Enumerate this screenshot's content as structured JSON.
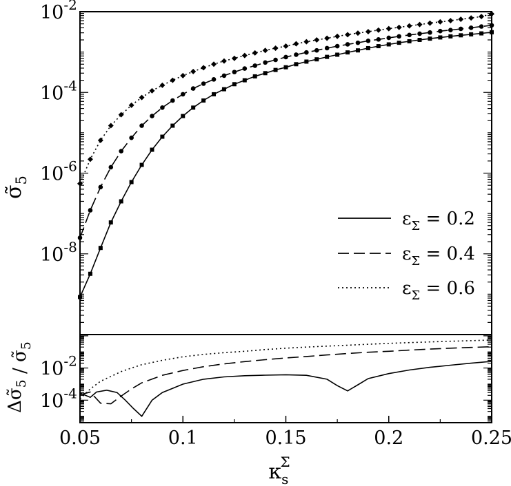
{
  "chart_data": [
    {
      "type": "line",
      "panel": "top",
      "ylabel": "σ̃5",
      "yscale": "log",
      "ylim": [
        1e-10,
        0.01
      ],
      "xlim": [
        0.05,
        0.25
      ],
      "ytick_labels": [
        {
          "value": 0.01,
          "mantissa": "10",
          "exp": "-2"
        },
        {
          "value": 0.0001,
          "mantissa": "10",
          "exp": "-4"
        },
        {
          "value": 1e-06,
          "mantissa": "10",
          "exp": "-6"
        },
        {
          "value": 1e-08,
          "mantissa": "10",
          "exp": "-8"
        }
      ],
      "legend_position": "center-right",
      "series": [
        {
          "name": "εΣ = 0.2",
          "style": "solid",
          "marker": "square",
          "x": [
            0.05,
            0.055,
            0.06,
            0.065,
            0.07,
            0.075,
            0.08,
            0.085,
            0.09,
            0.095,
            0.1,
            0.105,
            0.11,
            0.115,
            0.12,
            0.125,
            0.13,
            0.135,
            0.14,
            0.145,
            0.15,
            0.155,
            0.16,
            0.165,
            0.17,
            0.175,
            0.18,
            0.185,
            0.19,
            0.195,
            0.2,
            0.205,
            0.21,
            0.215,
            0.22,
            0.225,
            0.23,
            0.235,
            0.24,
            0.245,
            0.25
          ],
          "values": [
            8.5e-10,
            3.2e-09,
            1.4e-08,
            6e-08,
            2e-07,
            6e-07,
            1.6e-06,
            3.8e-06,
            8e-06,
            1.5e-05,
            2.6e-05,
            4.2e-05,
            6.3e-05,
            9e-05,
            0.00012,
            0.00016,
            0.0002,
            0.00025,
            0.0003,
            0.00036,
            0.00042,
            0.0005,
            0.00058,
            0.00066,
            0.00076,
            0.00086,
            0.00098,
            0.0011,
            0.00125,
            0.0014,
            0.00155,
            0.0017,
            0.00185,
            0.002,
            0.00215,
            0.0023,
            0.00245,
            0.0026,
            0.00275,
            0.0029,
            0.0031
          ]
        },
        {
          "name": "εΣ = 0.4",
          "style": "dashed",
          "marker": "circle",
          "x": [
            0.05,
            0.055,
            0.06,
            0.065,
            0.07,
            0.075,
            0.08,
            0.085,
            0.09,
            0.095,
            0.1,
            0.105,
            0.11,
            0.115,
            0.12,
            0.125,
            0.13,
            0.135,
            0.14,
            0.145,
            0.15,
            0.155,
            0.16,
            0.165,
            0.17,
            0.175,
            0.18,
            0.185,
            0.19,
            0.195,
            0.2,
            0.205,
            0.21,
            0.215,
            0.22,
            0.225,
            0.23,
            0.235,
            0.24,
            0.245,
            0.25
          ],
          "values": [
            2.5e-08,
            1.2e-07,
            4.5e-07,
            1.4e-06,
            3.5e-06,
            7.5e-06,
            1.5e-05,
            2.6e-05,
            4.2e-05,
            6.3e-05,
            9e-05,
            0.000125,
            0.000165,
            0.00021,
            0.00026,
            0.00032,
            0.00039,
            0.00046,
            0.00055,
            0.00064,
            0.00075,
            0.00086,
            0.00098,
            0.0011,
            0.00125,
            0.0014,
            0.00155,
            0.0017,
            0.0019,
            0.00205,
            0.00225,
            0.00245,
            0.00265,
            0.00285,
            0.00305,
            0.0033,
            0.0035,
            0.00375,
            0.004,
            0.0043,
            0.0046
          ]
        },
        {
          "name": "εΣ = 0.6",
          "style": "dotted",
          "marker": "diamond",
          "x": [
            0.05,
            0.055,
            0.06,
            0.065,
            0.07,
            0.075,
            0.08,
            0.085,
            0.09,
            0.095,
            0.1,
            0.105,
            0.11,
            0.115,
            0.12,
            0.125,
            0.13,
            0.135,
            0.14,
            0.145,
            0.15,
            0.155,
            0.16,
            0.165,
            0.17,
            0.175,
            0.18,
            0.185,
            0.19,
            0.195,
            0.2,
            0.205,
            0.21,
            0.215,
            0.22,
            0.225,
            0.23,
            0.235,
            0.24,
            0.245,
            0.25
          ],
          "values": [
            5.5e-07,
            2.2e-06,
            6.5e-06,
            1.5e-05,
            2.8e-05,
            4.8e-05,
            7.5e-05,
            0.00011,
            0.00015,
            0.0002,
            0.00026,
            0.00033,
            0.00041,
            0.0005,
            0.0006,
            0.0007,
            0.00082,
            0.00095,
            0.0011,
            0.00125,
            0.0014,
            0.0016,
            0.0018,
            0.002,
            0.0022,
            0.00245,
            0.0027,
            0.00295,
            0.0032,
            0.0035,
            0.0038,
            0.0041,
            0.00445,
            0.0048,
            0.0052,
            0.0056,
            0.006,
            0.0065,
            0.007,
            0.0076,
            0.0088
          ]
        }
      ]
    },
    {
      "type": "line",
      "panel": "bottom",
      "ylabel": "Δσ̃5 / σ̃5",
      "xlabel": "κsΣ",
      "yscale": "log",
      "ylim": [
        4e-06,
        1.2
      ],
      "xlim": [
        0.05,
        0.25
      ],
      "xticks": [
        0.05,
        0.1,
        0.15,
        0.2,
        0.25
      ],
      "xtick_labels": [
        "0.05",
        "0.1",
        "0.15",
        "0.2",
        "0.25"
      ],
      "ytick_labels": [
        {
          "value": 0.01,
          "mantissa": "10",
          "exp": "-2"
        },
        {
          "value": 0.0001,
          "mantissa": "10",
          "exp": "-4"
        }
      ],
      "series": [
        {
          "name": "εΣ = 0.2",
          "style": "solid",
          "x": [
            0.05,
            0.055,
            0.058,
            0.063,
            0.068,
            0.072,
            0.076,
            0.08,
            0.085,
            0.09,
            0.1,
            0.11,
            0.12,
            0.13,
            0.14,
            0.15,
            0.16,
            0.17,
            0.175,
            0.18,
            0.185,
            0.19,
            0.2,
            0.21,
            0.22,
            0.23,
            0.24,
            0.25
          ],
          "values": [
            0.00028,
            0.00015,
            0.00032,
            0.00042,
            0.0003,
            0.0001,
            3e-05,
            1e-05,
            0.0001,
            0.0003,
            0.001,
            0.002,
            0.0028,
            0.0033,
            0.0036,
            0.0038,
            0.0035,
            0.002,
            0.0008,
            0.00038,
            0.0009,
            0.0022,
            0.0045,
            0.0075,
            0.011,
            0.015,
            0.02,
            0.026
          ]
        },
        {
          "name": "εΣ = 0.4",
          "style": "dashed",
          "x": [
            0.05,
            0.055,
            0.06,
            0.065,
            0.07,
            0.075,
            0.08,
            0.09,
            0.1,
            0.11,
            0.12,
            0.13,
            0.14,
            0.15,
            0.16,
            0.17,
            0.18,
            0.19,
            0.2,
            0.21,
            0.22,
            0.23,
            0.24,
            0.25
          ],
          "values": [
            0.00022,
            0.00032,
            6.5e-05,
            6e-05,
            0.00018,
            0.0005,
            0.0012,
            0.0035,
            0.007,
            0.012,
            0.018,
            0.025,
            0.033,
            0.042,
            0.052,
            0.065,
            0.08,
            0.095,
            0.11,
            0.13,
            0.15,
            0.17,
            0.19,
            0.21
          ]
        },
        {
          "name": "εΣ = 0.6",
          "style": "dotted",
          "x": [
            0.05,
            0.055,
            0.06,
            0.065,
            0.07,
            0.075,
            0.08,
            0.09,
            0.1,
            0.11,
            0.12,
            0.13,
            0.14,
            0.15,
            0.16,
            0.17,
            0.18,
            0.19,
            0.2,
            0.21,
            0.22,
            0.23,
            0.24,
            0.25
          ],
          "values": [
            0.00012,
            0.0005,
            0.0015,
            0.003,
            0.006,
            0.01,
            0.016,
            0.03,
            0.05,
            0.07,
            0.09,
            0.11,
            0.14,
            0.17,
            0.2,
            0.23,
            0.26,
            0.3,
            0.34,
            0.38,
            0.42,
            0.46,
            0.5,
            0.55
          ]
        }
      ]
    }
  ]
}
